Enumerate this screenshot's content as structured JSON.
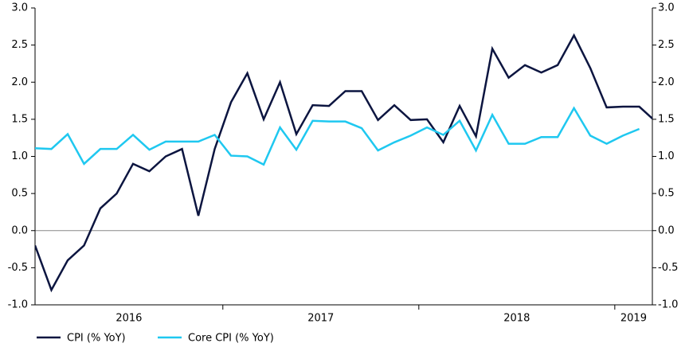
{
  "chart_data": {
    "type": "line",
    "categories": [
      null,
      null,
      null,
      null,
      null,
      null,
      null,
      null,
      null,
      null,
      null,
      null,
      null,
      null,
      null,
      null,
      null,
      null,
      null,
      null,
      null,
      null,
      null,
      null,
      null,
      null,
      null,
      null,
      null,
      null,
      null,
      null,
      null,
      null,
      null,
      null,
      null,
      null,
      null
    ],
    "year_labels": [
      "2016",
      "2017",
      "2018",
      "2019"
    ],
    "year_starts": [
      0,
      12,
      24,
      36
    ],
    "xlim": [
      0,
      37.8
    ],
    "ylim": [
      -1,
      3
    ],
    "yticks": [
      {
        "value": -1,
        "label": "-1.0"
      },
      {
        "value": -0.5,
        "label": "-0.5"
      },
      {
        "value": 0,
        "label": "0.0"
      },
      {
        "value": 0.5,
        "label": "0.5"
      },
      {
        "value": 1,
        "label": "1.0"
      },
      {
        "value": 1.5,
        "label": "1.5"
      },
      {
        "value": 2,
        "label": "2.0"
      },
      {
        "value": 2.5,
        "label": "2.5"
      },
      {
        "value": 3,
        "label": "3.0"
      }
    ],
    "y2lim": [
      -1,
      3
    ],
    "y2ticks": [
      {
        "value": -1,
        "label": "-1.0"
      },
      {
        "value": -0.5,
        "label": "-0.5"
      },
      {
        "value": 0,
        "label": "0.0"
      },
      {
        "value": 0.5,
        "label": "0.5"
      },
      {
        "value": 1,
        "label": "1.0"
      },
      {
        "value": 1.5,
        "label": "1.5"
      },
      {
        "value": 2,
        "label": "2.0"
      },
      {
        "value": 2.5,
        "label": "2.5"
      },
      {
        "value": 3,
        "label": "3.0"
      }
    ],
    "legend": "bottom-left",
    "series": [
      {
        "name": "CPI (% YoY)",
        "color": "#0c1540",
        "values": [
          -0.2,
          -0.8,
          -0.4,
          -0.2,
          0.3,
          0.5,
          0.9,
          0.8,
          1.0,
          1.1,
          0.2,
          1.1,
          1.73,
          2.12,
          1.5,
          2.0,
          1.3,
          1.69,
          1.68,
          1.88,
          1.88,
          1.49,
          1.69,
          1.49,
          1.5,
          1.19,
          1.68,
          1.27,
          2.45,
          2.06,
          2.23,
          2.13,
          2.23,
          2.63,
          2.19,
          1.66,
          1.67,
          1.67,
          1.47
        ]
      },
      {
        "name": "Core CPI (% YoY)",
        "color": "#1fc8f0",
        "values": [
          1.11,
          1.1,
          1.3,
          0.9,
          1.1,
          1.1,
          1.29,
          1.09,
          1.2,
          1.2,
          1.2,
          1.29,
          1.01,
          1.0,
          0.89,
          1.39,
          1.09,
          1.48,
          1.47,
          1.47,
          1.38,
          1.08,
          1.19,
          1.28,
          1.39,
          1.29,
          1.48,
          1.08,
          1.56,
          1.17,
          1.17,
          1.26,
          1.26,
          1.65,
          1.28,
          1.17,
          1.28,
          1.37,
          null
        ]
      }
    ]
  }
}
